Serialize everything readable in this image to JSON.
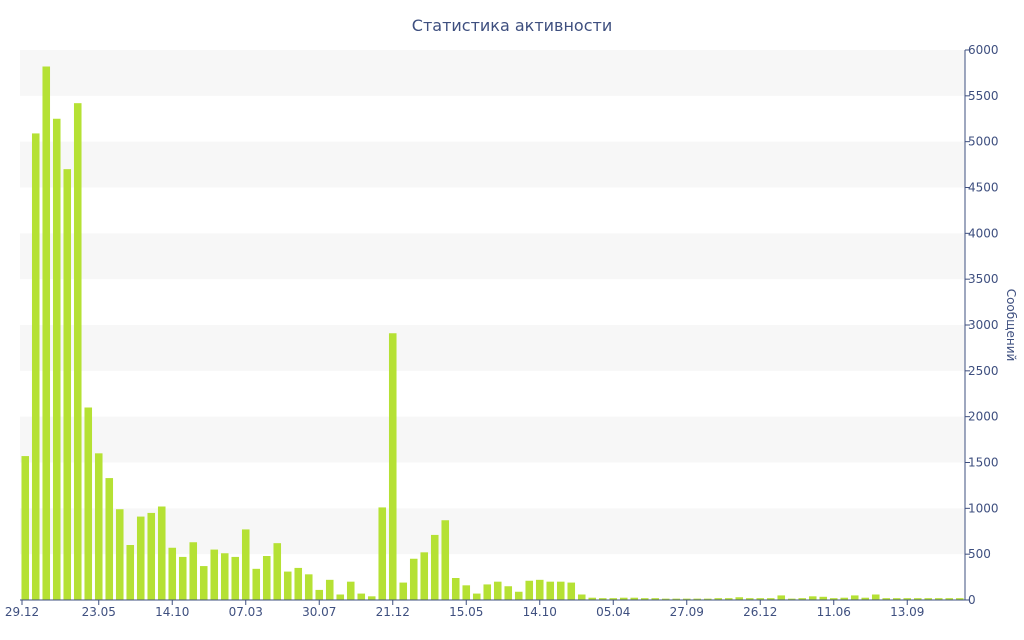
{
  "chart_data": {
    "type": "bar",
    "title": "Статистика активности",
    "ylabel": "Сообщений",
    "xlabel": "",
    "ylim": [
      0,
      6000
    ],
    "yticks": [
      0,
      500,
      1000,
      1500,
      2000,
      2500,
      3000,
      3500,
      4000,
      4500,
      5000,
      5500,
      6000
    ],
    "x_tick_labels": [
      {
        "index": 0,
        "label": "29.12"
      },
      {
        "index": 7,
        "label": "23.05"
      },
      {
        "index": 14,
        "label": "14.10"
      },
      {
        "index": 21,
        "label": "07.03"
      },
      {
        "index": 28,
        "label": "30.07"
      },
      {
        "index": 35,
        "label": "21.12"
      },
      {
        "index": 42,
        "label": "15.05"
      },
      {
        "index": 49,
        "label": "14.10"
      },
      {
        "index": 56,
        "label": "05.04"
      },
      {
        "index": 63,
        "label": "27.09"
      },
      {
        "index": 70,
        "label": "26.12"
      },
      {
        "index": 77,
        "label": "11.06"
      },
      {
        "index": 84,
        "label": "13.09"
      }
    ],
    "y_axis_side": "right",
    "grid": "alternating horizontal bands",
    "bar_color": "#b5e134",
    "series": [
      {
        "values": [
          1570,
          5090,
          5820,
          5250,
          4700,
          5420,
          2100,
          1600,
          1330,
          990,
          600,
          910,
          950,
          1020,
          570,
          470,
          630,
          370,
          550,
          510,
          470,
          770,
          340,
          480,
          620,
          310,
          350,
          280,
          110,
          220,
          60,
          200,
          70,
          40,
          1010,
          2910,
          190,
          450,
          520,
          710,
          870,
          240,
          160,
          70,
          170,
          200,
          150,
          90,
          210,
          220,
          200,
          200,
          190,
          60,
          25,
          20,
          20,
          25,
          25,
          20,
          20,
          15,
          15,
          15,
          15,
          15,
          20,
          20,
          30,
          20,
          20,
          20,
          50,
          15,
          20,
          40,
          35,
          20,
          25,
          50,
          25,
          60,
          20,
          20,
          20,
          20,
          20,
          20,
          20,
          20
        ]
      }
    ]
  }
}
